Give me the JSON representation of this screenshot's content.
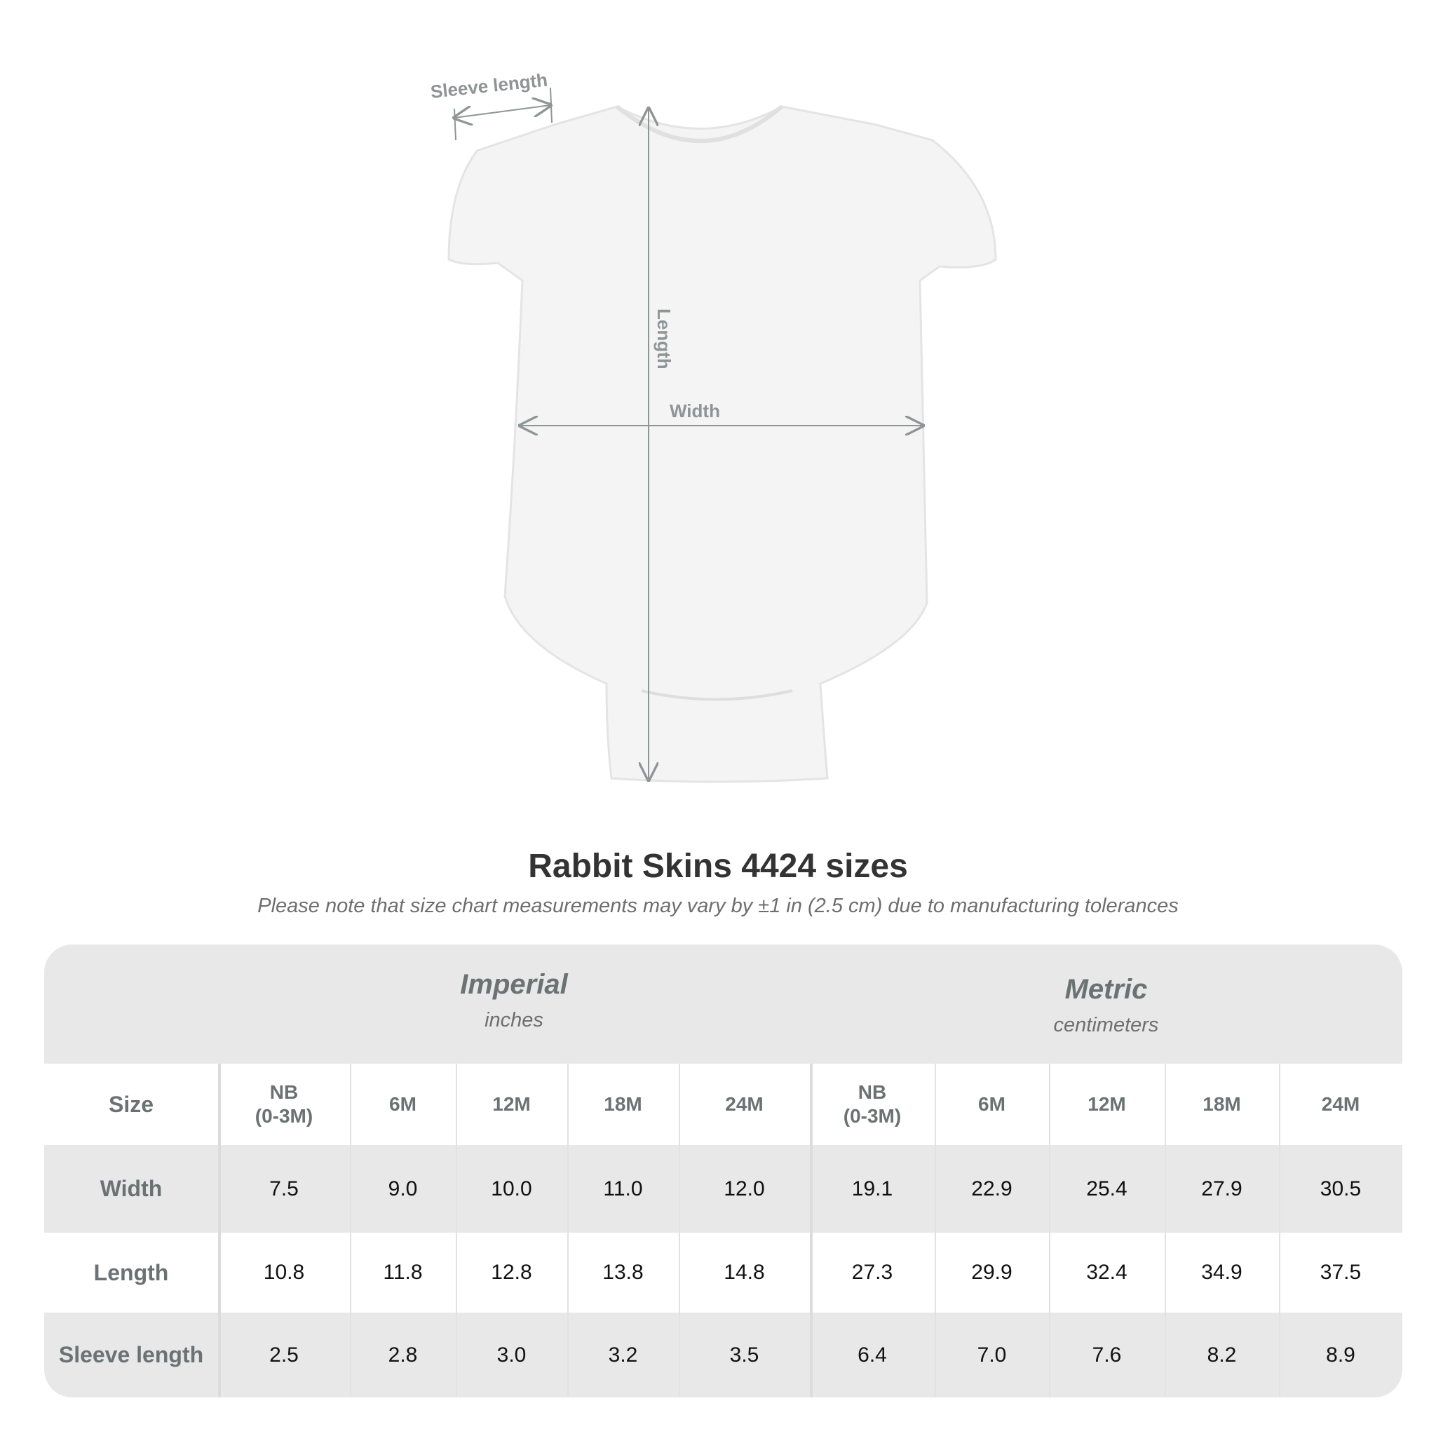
{
  "diagram": {
    "sleeve_label": "Sleeve length",
    "length_label": "Length",
    "width_label": "Width"
  },
  "title": "Rabbit Skins 4424 sizes",
  "subtitle": "Please note that size chart measurements may vary by ±1 in (2.5 cm) due to manufacturing tolerances",
  "table": {
    "imperial": {
      "name": "Imperial",
      "unit": "inches"
    },
    "metric": {
      "name": "Metric",
      "unit": "centimeters"
    },
    "size_label": "Size",
    "sizes": [
      "NB\n(0-3M)",
      "6M",
      "12M",
      "18M",
      "24M"
    ],
    "rows": [
      {
        "label": "Width",
        "imperial": [
          "7.5",
          "9.0",
          "10.0",
          "11.0",
          "12.0"
        ],
        "metric": [
          "19.1",
          "22.9",
          "25.4",
          "27.9",
          "30.5"
        ]
      },
      {
        "label": "Length",
        "imperial": [
          "10.8",
          "11.8",
          "12.8",
          "13.8",
          "14.8"
        ],
        "metric": [
          "27.3",
          "29.9",
          "32.4",
          "34.9",
          "37.5"
        ]
      },
      {
        "label": "Sleeve length",
        "imperial": [
          "2.5",
          "2.8",
          "3.0",
          "3.2",
          "3.5"
        ],
        "metric": [
          "6.4",
          "7.0",
          "7.6",
          "8.2",
          "8.9"
        ]
      }
    ]
  },
  "colors": {
    "band": "#e8e8e8",
    "label": "#6b7274",
    "title": "#333333",
    "measure_line": "#8f9494"
  }
}
